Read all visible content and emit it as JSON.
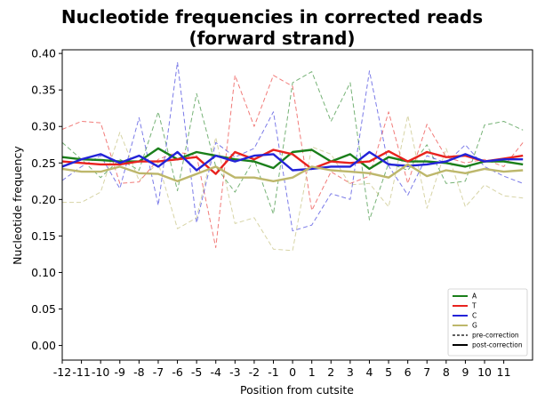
{
  "chart_data": {
    "type": "line",
    "title_line1": "Nucleotide frequencies in corrected reads",
    "title_line2": "(forward strand)",
    "xlabel": "Position from cutsite",
    "ylabel": "Nucleotide frequency",
    "ylim": [
      -0.02,
      0.405
    ],
    "xlim": [
      -12,
      12.5
    ],
    "x_ticks": [
      -12,
      -11,
      -10,
      -9,
      -8,
      -7,
      -6,
      -5,
      -4,
      -3,
      -2,
      -1,
      0,
      1,
      2,
      3,
      4,
      5,
      6,
      7,
      8,
      9,
      10,
      11
    ],
    "x_tick_labels": [
      "-12",
      "-11",
      "-10",
      "-9",
      "-8",
      "-7",
      "-6",
      "-5",
      "-4",
      "-3",
      "-2",
      "-1",
      "0",
      "1",
      "2",
      "3",
      "4",
      "5",
      "6",
      "7",
      "8",
      "9",
      "10",
      "11"
    ],
    "y_ticks": [
      0.0,
      0.05,
      0.1,
      0.15,
      0.2,
      0.25,
      0.3,
      0.35,
      0.4
    ],
    "y_tick_labels": [
      "0.00",
      "0.05",
      "0.10",
      "0.15",
      "0.20",
      "0.25",
      "0.30",
      "0.35",
      "0.40"
    ],
    "grid": false,
    "legend_position": "lower-right",
    "x": [
      -12,
      -11,
      -10,
      -9,
      -8,
      -7,
      -6,
      -5,
      -4,
      -3,
      -2,
      -1,
      0,
      1,
      2,
      3,
      4,
      5,
      6,
      7,
      8,
      9,
      10,
      11,
      12
    ],
    "series": [
      {
        "name": "A",
        "style": "pre",
        "color": "#1a7f1a",
        "values": [
          0.278,
          0.255,
          0.23,
          0.255,
          0.24,
          0.32,
          0.212,
          0.345,
          0.245,
          0.21,
          0.255,
          0.18,
          0.36,
          0.375,
          0.307,
          0.36,
          0.172,
          0.25,
          0.24,
          0.275,
          0.222,
          0.225,
          0.302,
          0.307,
          0.295
        ]
      },
      {
        "name": "T",
        "style": "pre",
        "color": "#e8231f",
        "values": [
          0.296,
          0.307,
          0.305,
          0.222,
          0.224,
          0.255,
          0.265,
          0.26,
          0.134,
          0.37,
          0.3,
          0.37,
          0.355,
          0.185,
          0.238,
          0.222,
          0.232,
          0.32,
          0.222,
          0.303,
          0.258,
          0.25,
          0.255,
          0.245,
          0.278
        ]
      },
      {
        "name": "C",
        "style": "pre",
        "color": "#2323d8",
        "values": [
          0.226,
          0.245,
          0.26,
          0.215,
          0.312,
          0.192,
          0.388,
          0.168,
          0.278,
          0.258,
          0.27,
          0.32,
          0.157,
          0.165,
          0.208,
          0.2,
          0.376,
          0.246,
          0.206,
          0.26,
          0.25,
          0.275,
          0.245,
          0.232,
          0.222
        ]
      },
      {
        "name": "G",
        "style": "pre",
        "color": "#bdb76b",
        "values": [
          0.196,
          0.196,
          0.21,
          0.292,
          0.226,
          0.25,
          0.16,
          0.175,
          0.285,
          0.167,
          0.175,
          0.132,
          0.13,
          0.272,
          0.262,
          0.22,
          0.222,
          0.19,
          0.315,
          0.188,
          0.27,
          0.19,
          0.22,
          0.205,
          0.202
        ]
      },
      {
        "name": "A",
        "style": "post",
        "color": "#1a7f1a",
        "values": [
          0.258,
          0.255,
          0.254,
          0.252,
          0.252,
          0.27,
          0.255,
          0.265,
          0.26,
          0.255,
          0.252,
          0.243,
          0.265,
          0.268,
          0.252,
          0.262,
          0.242,
          0.258,
          0.252,
          0.252,
          0.25,
          0.245,
          0.252,
          0.252,
          0.248
        ]
      },
      {
        "name": "T",
        "style": "post",
        "color": "#e8231f",
        "values": [
          0.252,
          0.25,
          0.248,
          0.248,
          0.252,
          0.252,
          0.255,
          0.258,
          0.235,
          0.265,
          0.255,
          0.268,
          0.262,
          0.242,
          0.252,
          0.25,
          0.252,
          0.266,
          0.252,
          0.265,
          0.258,
          0.26,
          0.252,
          0.256,
          0.26
        ]
      },
      {
        "name": "C",
        "style": "post",
        "color": "#2323d8",
        "values": [
          0.245,
          0.255,
          0.262,
          0.25,
          0.26,
          0.245,
          0.265,
          0.24,
          0.26,
          0.252,
          0.26,
          0.262,
          0.24,
          0.242,
          0.245,
          0.245,
          0.265,
          0.248,
          0.246,
          0.248,
          0.252,
          0.262,
          0.252,
          0.255,
          0.255
        ]
      },
      {
        "name": "G",
        "style": "post",
        "color": "#bdb76b",
        "values": [
          0.242,
          0.238,
          0.238,
          0.245,
          0.236,
          0.235,
          0.225,
          0.235,
          0.245,
          0.23,
          0.23,
          0.225,
          0.23,
          0.245,
          0.24,
          0.238,
          0.236,
          0.23,
          0.248,
          0.232,
          0.24,
          0.236,
          0.242,
          0.238,
          0.24
        ]
      }
    ],
    "legend": [
      {
        "label": "A",
        "color": "#1a7f1a",
        "dash": false
      },
      {
        "label": "T",
        "color": "#e8231f",
        "dash": false
      },
      {
        "label": "C",
        "color": "#2323d8",
        "dash": false
      },
      {
        "label": "G",
        "color": "#bdb76b",
        "dash": false
      },
      {
        "label": "pre-correction",
        "color": "#000000",
        "dash": true
      },
      {
        "label": "post-correction",
        "color": "#000000",
        "dash": false
      }
    ]
  }
}
